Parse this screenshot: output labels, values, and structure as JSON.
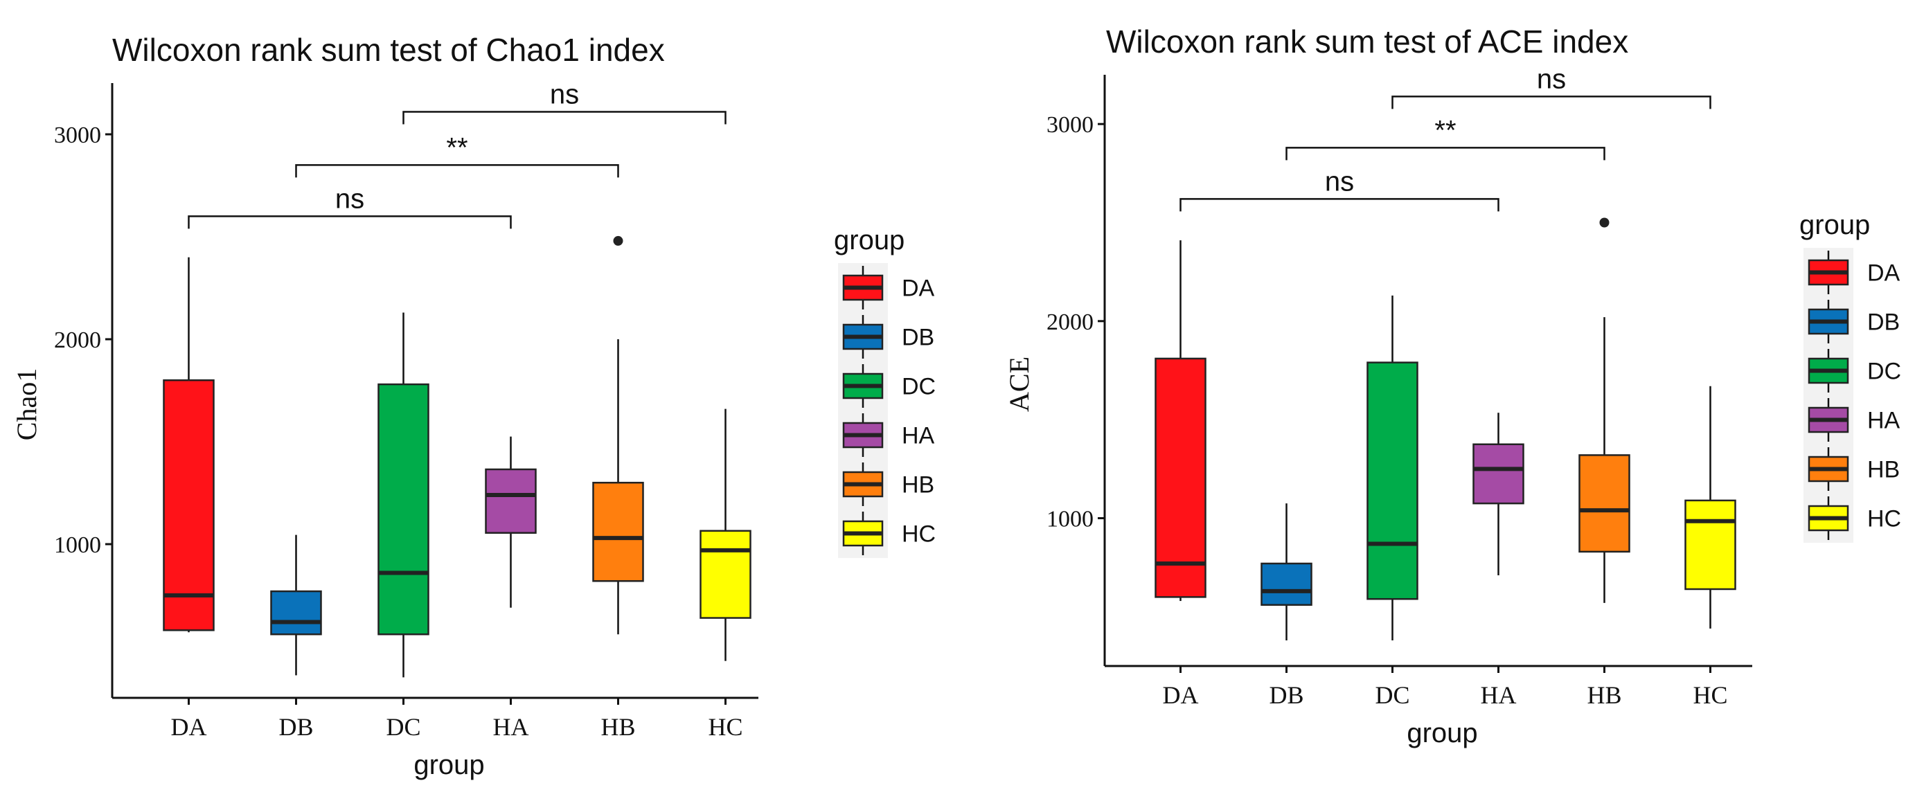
{
  "chart_data": [
    {
      "type": "box",
      "title": "Wilcoxon rank sum test of Chao1 index",
      "xlabel": "group",
      "ylabel": "Chao1",
      "ylim": [
        250,
        3250
      ],
      "yticks": [
        1000,
        2000,
        3000
      ],
      "categories": [
        "DA",
        "DB",
        "DC",
        "HA",
        "HB",
        "HC"
      ],
      "boxes": [
        {
          "group": "DA",
          "min": 570,
          "q1": 580,
          "median": 750,
          "q3": 1800,
          "max": 2400,
          "outliers": []
        },
        {
          "group": "DB",
          "min": 360,
          "q1": 560,
          "median": 620,
          "q3": 770,
          "max": 1045,
          "outliers": []
        },
        {
          "group": "DC",
          "min": 350,
          "q1": 560,
          "median": 860,
          "q3": 1780,
          "max": 2130,
          "outliers": []
        },
        {
          "group": "HA",
          "min": 690,
          "q1": 1055,
          "median": 1240,
          "q3": 1365,
          "max": 1525,
          "outliers": []
        },
        {
          "group": "HB",
          "min": 560,
          "q1": 820,
          "median": 1030,
          "q3": 1300,
          "max": 2000,
          "outliers": [
            2480
          ]
        },
        {
          "group": "HC",
          "min": 430,
          "q1": 640,
          "median": 970,
          "q3": 1065,
          "max": 1660,
          "outliers": []
        }
      ],
      "comparisons": [
        {
          "from": "DA",
          "to": "HA",
          "label": "ns",
          "y": 2600
        },
        {
          "from": "DB",
          "to": "HB",
          "label": "**",
          "y": 2850
        },
        {
          "from": "DC",
          "to": "HC",
          "label": "ns",
          "y": 3110
        }
      ],
      "legend": {
        "title": "group",
        "items": [
          "DA",
          "DB",
          "DC",
          "HA",
          "HB",
          "HC"
        ],
        "position": "right"
      }
    },
    {
      "type": "box",
      "title": "Wilcoxon rank sum test of ACE index",
      "xlabel": "group",
      "ylabel": "ACE",
      "ylim": [
        250,
        3250
      ],
      "yticks": [
        1000,
        2000,
        3000
      ],
      "categories": [
        "DA",
        "DB",
        "DC",
        "HA",
        "HB",
        "HC"
      ],
      "boxes": [
        {
          "group": "DA",
          "min": 580,
          "q1": 600,
          "median": 770,
          "q3": 1810,
          "max": 2410,
          "outliers": []
        },
        {
          "group": "DB",
          "min": 380,
          "q1": 560,
          "median": 630,
          "q3": 770,
          "max": 1075,
          "outliers": []
        },
        {
          "group": "DC",
          "min": 380,
          "q1": 590,
          "median": 870,
          "q3": 1790,
          "max": 2130,
          "outliers": []
        },
        {
          "group": "HA",
          "min": 710,
          "q1": 1075,
          "median": 1250,
          "q3": 1375,
          "max": 1535,
          "outliers": []
        },
        {
          "group": "HB",
          "min": 570,
          "q1": 830,
          "median": 1040,
          "q3": 1320,
          "max": 2020,
          "outliers": [
            2500
          ]
        },
        {
          "group": "HC",
          "min": 440,
          "q1": 640,
          "median": 985,
          "q3": 1090,
          "max": 1670,
          "outliers": []
        }
      ],
      "comparisons": [
        {
          "from": "DA",
          "to": "HA",
          "label": "ns",
          "y": 2620
        },
        {
          "from": "DB",
          "to": "HB",
          "label": "**",
          "y": 2880
        },
        {
          "from": "DC",
          "to": "HC",
          "label": "ns",
          "y": 3140
        }
      ],
      "legend": {
        "title": "group",
        "items": [
          "DA",
          "DB",
          "DC",
          "HA",
          "HB",
          "HC"
        ],
        "position": "right"
      }
    }
  ],
  "colors": {
    "DA": "#FF1218",
    "DB": "#0A72BA",
    "DC": "#00AC4A",
    "HA": "#A54BA5",
    "HB": "#FF7F0E",
    "HC": "#FFFF00"
  }
}
